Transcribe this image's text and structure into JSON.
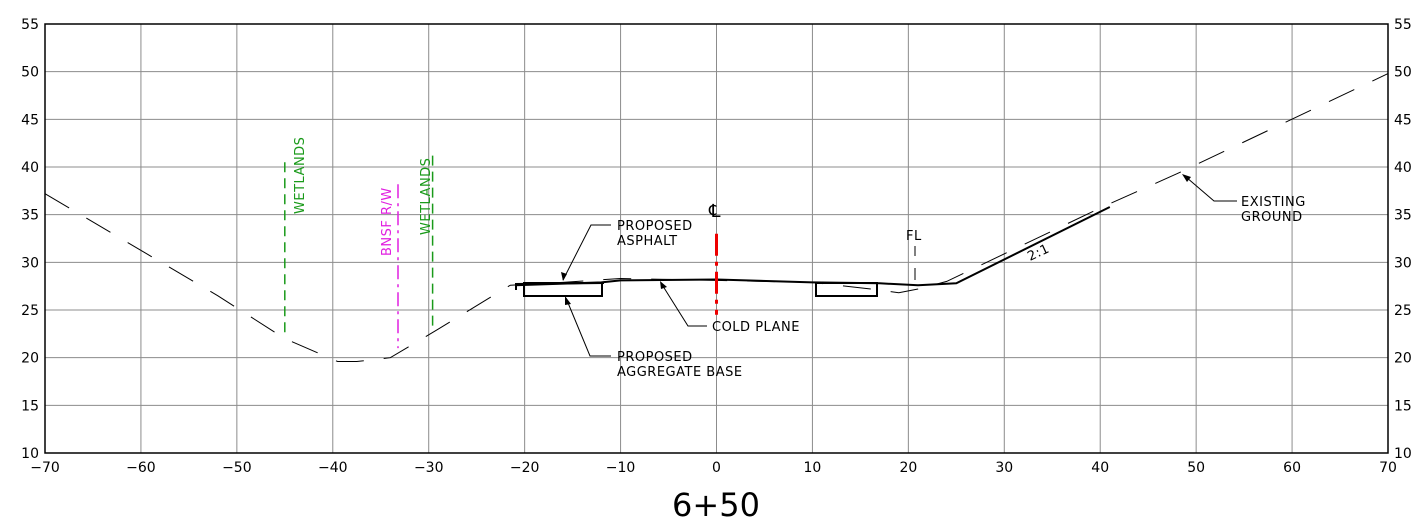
{
  "station_label": "6+50",
  "axes": {
    "x_ticks": [
      -70,
      -60,
      -50,
      -40,
      -30,
      -20,
      -10,
      0,
      10,
      20,
      30,
      40,
      50,
      60,
      70
    ],
    "y_ticks": [
      10,
      15,
      20,
      25,
      30,
      35,
      40,
      45,
      50,
      55
    ],
    "x_range": [
      -70,
      70
    ],
    "y_range": [
      10,
      55
    ],
    "grid": true
  },
  "annotations": {
    "wetlands_left": "WETLANDS",
    "wetlands_right": "WETLANDS",
    "bnsf_rw": "BNSF R/W",
    "centerline": "℄",
    "proposed_asphalt_line1": "PROPOSED",
    "proposed_asphalt_line2": "ASPHALT",
    "cold_plane": "COLD PLANE",
    "proposed_base_line1": "PROPOSED",
    "proposed_base_line2": "AGGREGATE BASE",
    "flowline": "FL",
    "slope": "2:1",
    "existing_ground_line1": "EXISTING",
    "existing_ground_line2": "GROUND"
  },
  "colors": {
    "grid": "#8c8c8c",
    "wetlands": "#1a9a1a",
    "right_of_way": "#e020e0",
    "centerline": "#ee0000",
    "linework": "#000000"
  },
  "profiles": {
    "existing_ground": [
      [
        -70,
        37.2
      ],
      [
        -52,
        26.5
      ],
      [
        -45,
        22
      ],
      [
        -39.5,
        19.6
      ],
      [
        -37.5,
        19.6
      ],
      [
        -34,
        20
      ],
      [
        -29,
        23
      ],
      [
        -21.5,
        27.6
      ],
      [
        -16,
        27.9
      ],
      [
        -10,
        28.3
      ],
      [
        0,
        28.1
      ],
      [
        10,
        27.9
      ],
      [
        17,
        27.1
      ],
      [
        19,
        26.8
      ],
      [
        21,
        27.2
      ],
      [
        24,
        28
      ],
      [
        40,
        35.7
      ],
      [
        48,
        39.3
      ],
      [
        70,
        49.8
      ]
    ],
    "proposed_finished_grade": [
      [
        -21,
        27.6
      ],
      [
        -12,
        27.9
      ],
      [
        -10,
        28.1
      ],
      [
        0,
        28.2
      ],
      [
        10,
        27.9
      ],
      [
        17,
        27.8
      ],
      [
        21,
        27.6
      ],
      [
        25,
        27.8
      ],
      [
        41,
        35.8
      ]
    ],
    "wetlands_left_line": [
      [
        -45,
        40.5
      ],
      [
        -45,
        22.6
      ]
    ],
    "wetlands_right_line": [
      [
        -29.6,
        41.2
      ],
      [
        -29.6,
        23.2
      ]
    ],
    "bnsf_rw_line": [
      [
        -33.2,
        38.2
      ],
      [
        -33.2,
        21
      ]
    ],
    "centerline_segment": [
      [
        0,
        33
      ],
      [
        0,
        24.5
      ]
    ]
  }
}
